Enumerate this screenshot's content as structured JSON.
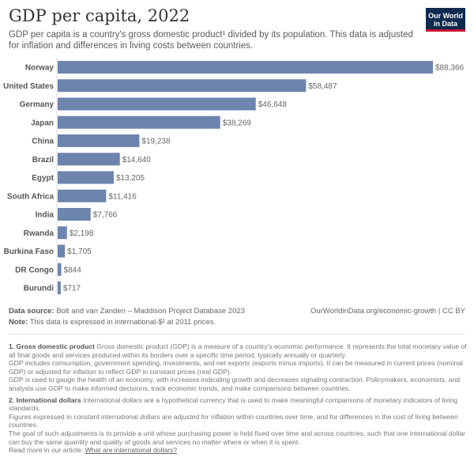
{
  "header": {
    "title": "GDP per capita, 2022",
    "subtitle": "GDP per capita is a country's gross domestic product¹ divided by its population. This data is adjusted for inflation and differences in living costs between countries.",
    "logo": "Our World in Data"
  },
  "chart_data": {
    "type": "bar",
    "orientation": "horizontal",
    "categories": [
      "Norway",
      "United States",
      "Germany",
      "Japan",
      "China",
      "Brazil",
      "Egypt",
      "South Africa",
      "India",
      "Rwanda",
      "Burkina Faso",
      "DR Congo",
      "Burundi"
    ],
    "values": [
      88366,
      58487,
      46648,
      38269,
      19238,
      14640,
      13205,
      11416,
      7766,
      2198,
      1705,
      844,
      717
    ],
    "labels": [
      "$88,366",
      "$58,487",
      "$46,648",
      "$38,269",
      "$19,238",
      "$14,640",
      "$13,205",
      "$11,416",
      "$7,766",
      "$2,198",
      "$1,705",
      "$844",
      "$717"
    ],
    "bar_color": "#6d84ad",
    "grid": false
  },
  "footer": {
    "source_label": "Data source:",
    "source": "Bolt and van Zanden – Maddison Project Database 2023",
    "note_label": "Note:",
    "note": "This data is expressed in international-$² at 2011 prices.",
    "url": "OurWorldinData.org/economic-growth | CC BY"
  },
  "notes": {
    "n1_title": "1. Gross domestic product",
    "n1_p1": "Gross domestic product (GDP) is a measure of a country's economic performance. It represents the total monetary value of all final goods and services produced within its borders over a specific time period, typically annually or quarterly.",
    "n1_p2": "GDP includes consumption, government spending, investments, and net exports (exports minus imports). It can be measured in current prices (nominal GDP) or adjusted for inflation to reflect GDP in constant prices (real GDP).",
    "n1_p3": "GDP is used to gauge the health of an economy, with increases indicating growth and decreases signaling contraction. Policymakers, economists, and analysts use GDP to make informed decisions, track economic trends, and make comparisons between countries.",
    "n2_title": "2. International dollars",
    "n2_p1": "International dollars are a hypothetical currency that is used to make meaningful comparisons of monetary indicators of living standards.",
    "n2_p2": "Figures expressed in constant international dollars are adjusted for inflation within countries over time, and for differences in the cost of living between countries.",
    "n2_p3": "The goal of such adjustments is to provide a unit whose purchasing power is held fixed over time and across countries, such that one international dollar can buy the same quantity and quality of goods and services no matter where or when it is spent.",
    "n2_read": "Read more in our article:",
    "n2_link": "What are international dollars?"
  }
}
